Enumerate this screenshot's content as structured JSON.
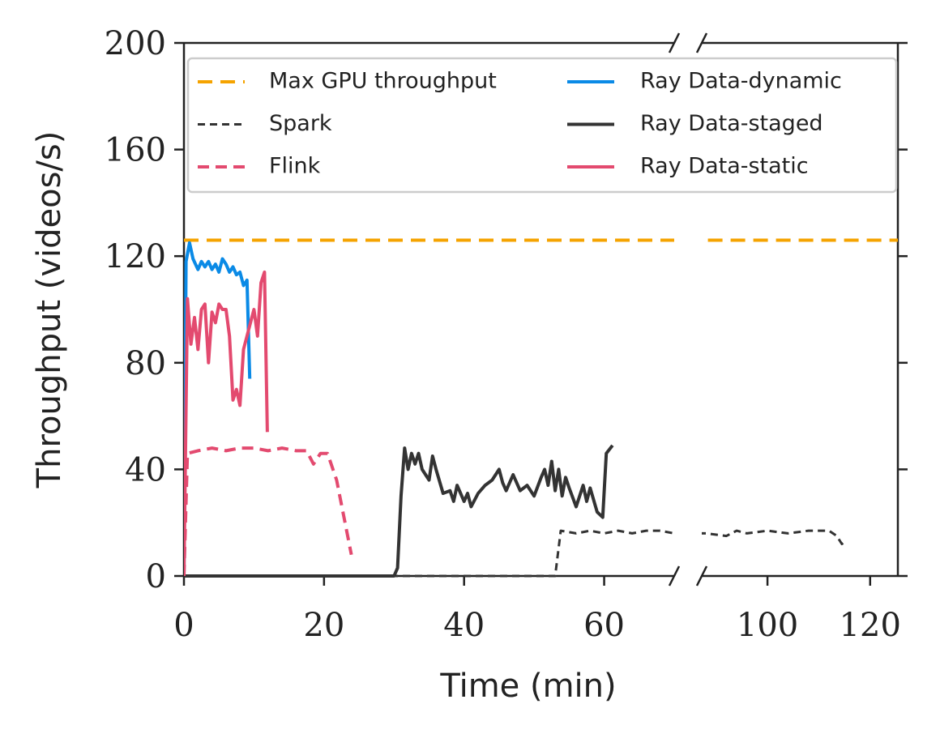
{
  "chart_data": {
    "type": "line",
    "x_label": "Time (min)",
    "y_label": "Throughput (videos/s)",
    "xlim": [
      [
        0,
        70
      ],
      [
        87.2,
        125.4
      ]
    ],
    "xticks": [
      [
        0,
        20,
        40,
        60
      ],
      [
        100,
        120
      ]
    ],
    "ylim": [
      0,
      200
    ],
    "yticks": [
      0,
      40,
      80,
      120,
      160,
      200
    ],
    "legend": "upper",
    "series": [
      {
        "name": "Max GPU throughput",
        "color": "#f5a300",
        "style": "dashed",
        "x": [
          0,
          125.4
        ],
        "values": [
          126,
          126
        ]
      },
      {
        "name": "Spark",
        "color": "#333333",
        "style": "dashed",
        "x": [
          0,
          53,
          53.8,
          56,
          58,
          60,
          62,
          64,
          66,
          68,
          70,
          88,
          92,
          94,
          96,
          100,
          104,
          108,
          112,
          113.5,
          114.5,
          115.3
        ],
        "values": [
          0,
          0,
          17,
          16,
          17,
          16,
          17,
          16,
          17,
          17,
          16,
          16,
          15,
          17,
          16,
          17,
          16,
          17,
          17,
          15,
          12,
          13
        ]
      },
      {
        "name": "Flink",
        "color": "#e34a6f",
        "style": "dashed",
        "x": [
          0,
          0.5,
          2,
          4,
          6,
          8,
          10,
          12,
          14,
          16,
          17.5,
          18.5,
          19.5,
          20.5,
          21.8,
          23,
          23.9
        ],
        "values": [
          0,
          46,
          47,
          48,
          47,
          48,
          48,
          47,
          48,
          47,
          47,
          42,
          46,
          46,
          36,
          20,
          8
        ]
      },
      {
        "name": "Ray Data-dynamic",
        "color": "#0a8ae6",
        "style": "solid",
        "x": [
          0,
          0.3,
          0.8,
          1.3,
          2,
          2.5,
          3,
          3.5,
          4,
          4.5,
          5,
          5.5,
          6,
          6.5,
          7,
          7.5,
          8,
          8.5,
          9,
          9.4
        ],
        "values": [
          0,
          118,
          125,
          119,
          115,
          118,
          116,
          118,
          115,
          117,
          114,
          119,
          117,
          114,
          116,
          113,
          114,
          109,
          111,
          74
        ]
      },
      {
        "name": "Ray Data-staged",
        "color": "#333333",
        "style": "solid",
        "x": [
          0,
          30,
          30.5,
          31,
          31.5,
          32,
          32.5,
          33,
          33.5,
          34,
          35,
          35.5,
          36,
          37,
          38,
          38.5,
          39,
          40,
          40.5,
          41,
          42,
          43,
          44,
          45,
          45.5,
          46,
          47,
          48,
          49,
          50,
          51,
          51.5,
          52,
          52.5,
          53,
          53.5,
          54,
          54.5,
          55,
          56,
          57,
          57.5,
          58,
          59,
          59.8,
          60.3,
          61.2
        ],
        "values": [
          0,
          0,
          3,
          30,
          48,
          40,
          46,
          42,
          46,
          40,
          36,
          45,
          40,
          31,
          32,
          28,
          34,
          28,
          31,
          26,
          31,
          34,
          36,
          40,
          35,
          32,
          38,
          32,
          34,
          30,
          37,
          40,
          34,
          43,
          32,
          40,
          30,
          37,
          33,
          26,
          34,
          28,
          33,
          24,
          22,
          46,
          49
        ]
      },
      {
        "name": "Ray Data-static",
        "color": "#e34a6f",
        "style": "solid",
        "x": [
          0,
          0.5,
          1,
          1.5,
          2,
          2.5,
          3,
          3.5,
          4,
          4.5,
          5,
          5.5,
          6,
          6.5,
          7,
          7.5,
          8,
          8.5,
          9,
          9.5,
          10,
          10.5,
          11,
          11.5,
          11.9
        ],
        "values": [
          0,
          104,
          87,
          97,
          85,
          100,
          102,
          80,
          99,
          95,
          102,
          100,
          100,
          90,
          66,
          70,
          64,
          85,
          90,
          95,
          100,
          90,
          110,
          114,
          54
        ]
      }
    ]
  }
}
